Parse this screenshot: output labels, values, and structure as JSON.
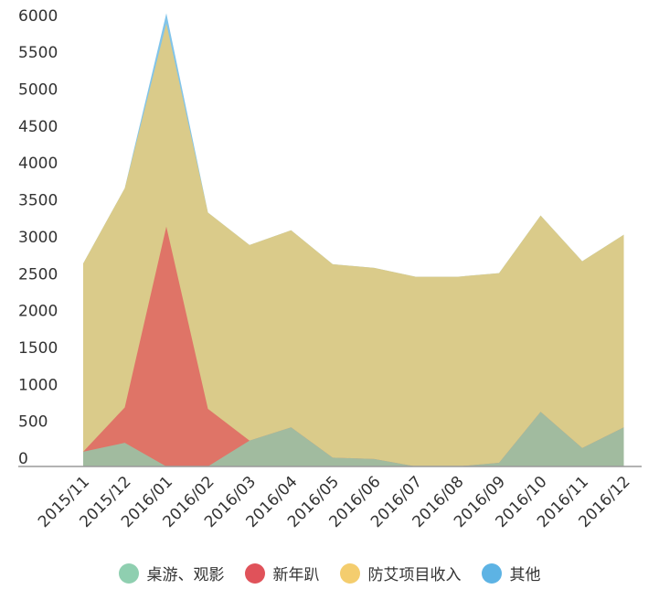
{
  "chart_data": {
    "type": "area",
    "stacked": true,
    "categories": [
      "2015/11",
      "2015/12",
      "2016/01",
      "2016/02",
      "2016/03",
      "2016/04",
      "2016/05",
      "2016/06",
      "2016/07",
      "2016/08",
      "2016/09",
      "2016/10",
      "2016/11",
      "2016/12"
    ],
    "series": [
      {
        "name": "桌游、观影",
        "color": "#8fcfb0",
        "values": [
          200,
          320,
          0,
          0,
          350,
          530,
          120,
          100,
          0,
          0,
          50,
          740,
          250,
          530
        ]
      },
      {
        "name": "新年趴",
        "color": "#e0525a",
        "values": [
          0,
          480,
          3250,
          780,
          0,
          0,
          0,
          0,
          0,
          0,
          0,
          0,
          0,
          0
        ]
      },
      {
        "name": "防艾项目收入",
        "color": "#f4cd6e",
        "values": [
          2550,
          2970,
          2750,
          2660,
          2650,
          2670,
          2620,
          2590,
          2570,
          2570,
          2570,
          2660,
          2530,
          2610
        ]
      },
      {
        "name": "其他",
        "color": "#5db3e4",
        "values": [
          0,
          0,
          140,
          0,
          0,
          0,
          0,
          0,
          0,
          0,
          0,
          0,
          0,
          0
        ]
      }
    ],
    "yticks": [
      0,
      500,
      1000,
      1500,
      2000,
      2500,
      3000,
      3500,
      4000,
      4500,
      5000,
      5500,
      6000
    ],
    "ylim": [
      0,
      6000
    ],
    "title": "",
    "xlabel": "",
    "ylabel": "",
    "grid": false,
    "legend_position": "bottom"
  }
}
